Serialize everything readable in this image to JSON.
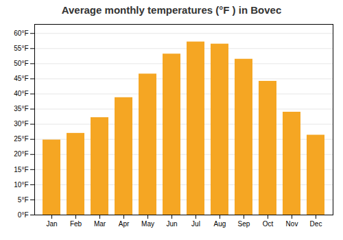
{
  "chart_data": {
    "type": "bar",
    "title": "Average monthly temperatures (°F ) in Bovec",
    "categories": [
      "Jan",
      "Feb",
      "Mar",
      "Apr",
      "May",
      "Jun",
      "Jul",
      "Aug",
      "Sep",
      "Oct",
      "Nov",
      "Dec"
    ],
    "values": [
      24.8,
      27.0,
      32.2,
      38.8,
      46.6,
      53.2,
      57.2,
      56.5,
      51.5,
      44.2,
      34.0,
      26.4
    ],
    "color": "#F5A623",
    "ylim": [
      0,
      63
    ],
    "yticks": [
      {
        "value": 0,
        "label": "0°F"
      },
      {
        "value": 5,
        "label": "5°F"
      },
      {
        "value": 10,
        "label": "10°F"
      },
      {
        "value": 15,
        "label": "15°F"
      },
      {
        "value": 20,
        "label": "20°F"
      },
      {
        "value": 25,
        "label": "25°F"
      },
      {
        "value": 30,
        "label": "30°F"
      },
      {
        "value": 35,
        "label": "35°F"
      },
      {
        "value": 40,
        "label": "40°F"
      },
      {
        "value": 45,
        "label": "45°F"
      },
      {
        "value": 50,
        "label": "50°F"
      },
      {
        "value": 55,
        "label": "55°F"
      },
      {
        "value": 60,
        "label": "60°F"
      }
    ],
    "grid": true
  }
}
